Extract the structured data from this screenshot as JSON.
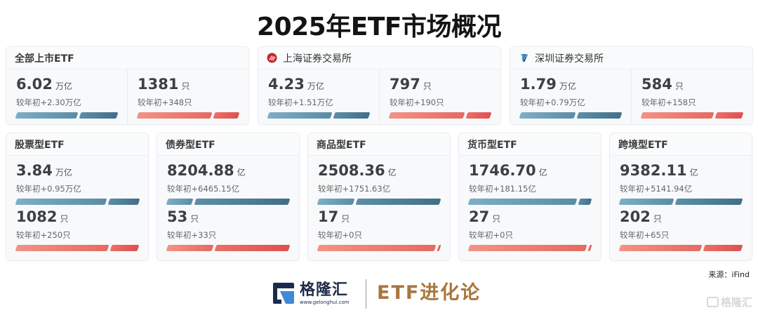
{
  "title": "2025年ETF市场概况",
  "colors": {
    "blue_bar": "#5b8ca6",
    "red_bar": "#e56a62",
    "card_bg": "#f8f9fb",
    "brand_navy": "#1b2b4b",
    "brand_gold": "#a8763c"
  },
  "top_cards": [
    {
      "label": "全部上市ETF",
      "icon": null,
      "aum": {
        "value": "6.02",
        "unit": "万亿",
        "change": "较年初+2.30万亿",
        "split_pct": 62
      },
      "count": {
        "value": "1381",
        "unit": "只",
        "change": "较年初+348只",
        "split_pct": 75
      }
    },
    {
      "label": "上海证券交易所",
      "icon": "sse-logo-icon",
      "aum": {
        "value": "4.23",
        "unit": "万亿",
        "change": "较年初+1.51万亿",
        "split_pct": 64
      },
      "count": {
        "value": "797",
        "unit": "只",
        "change": "较年初+190只",
        "split_pct": 76
      }
    },
    {
      "label": "深圳证券交易所",
      "icon": "szse-logo-icon",
      "aum": {
        "value": "1.79",
        "unit": "万亿",
        "change": "较年初+0.79万亿",
        "split_pct": 56
      },
      "count": {
        "value": "584",
        "unit": "只",
        "change": "较年初+158只",
        "split_pct": 73
      }
    }
  ],
  "bottom_cards": [
    {
      "label": "股票型ETF",
      "aum": {
        "value": "3.84",
        "unit": "万亿",
        "change": "较年初+0.95万亿",
        "split_pct": 75
      },
      "count": {
        "value": "1082",
        "unit": "只",
        "change": "较年初+250只",
        "split_pct": 77
      }
    },
    {
      "label": "债券型ETF",
      "aum": {
        "value": "8204.88",
        "unit": "亿",
        "change": "较年初+6465.15亿",
        "split_pct": 21
      },
      "count": {
        "value": "53",
        "unit": "只",
        "change": "较年初+33只",
        "split_pct": 38
      }
    },
    {
      "label": "商品型ETF",
      "aum": {
        "value": "2508.36",
        "unit": "亿",
        "change": "较年初+1751.63亿",
        "split_pct": 30
      },
      "count": {
        "value": "17",
        "unit": "只",
        "change": "较年初+0只",
        "split_pct": 98
      }
    },
    {
      "label": "货币型ETF",
      "aum": {
        "value": "1746.70",
        "unit": "亿",
        "change": "较年初+181.15亿",
        "split_pct": 90
      },
      "count": {
        "value": "27",
        "unit": "只",
        "change": "较年初+0只",
        "split_pct": 98
      }
    },
    {
      "label": "跨境型ETF",
      "aum": {
        "value": "9382.11",
        "unit": "亿",
        "change": "较年初+5141.94亿",
        "split_pct": 45
      },
      "count": {
        "value": "202",
        "unit": "只",
        "change": "较年初+65只",
        "split_pct": 68
      }
    }
  ],
  "source": "来源：iFind",
  "footer": {
    "brand_name": "格隆汇",
    "brand_url": "www.gelonghui.com",
    "series_name": "ETF进化论"
  },
  "watermark": "格隆汇"
}
